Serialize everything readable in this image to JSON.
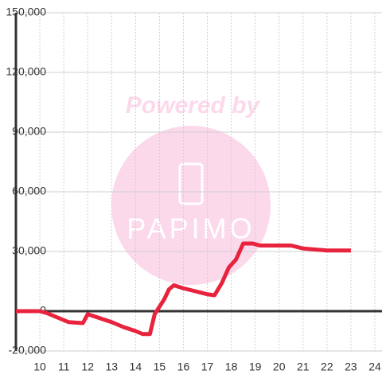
{
  "chart_data": {
    "type": "line",
    "x": [
      9,
      10,
      10.3,
      10.5,
      10.8,
      11.2,
      11.8,
      12,
      12.5,
      13,
      13.5,
      14,
      14.3,
      14.6,
      14.8,
      15.2,
      15.4,
      15.6,
      16,
      16.5,
      17,
      17.3,
      17.6,
      17.9,
      18.2,
      18.5,
      18.9,
      19.2,
      20,
      20.5,
      21,
      21.5,
      22,
      23
    ],
    "series": [
      {
        "color": "#e8233d",
        "values": [
          0,
          0,
          -1000,
          -2000,
          -3500,
          -5500,
          -6000,
          -1500,
          -3500,
          -5500,
          -8000,
          -10000,
          -11500,
          -11500,
          -1500,
          6000,
          11000,
          13000,
          11500,
          10000,
          8500,
          8000,
          14000,
          22000,
          26000,
          34000,
          34000,
          33000,
          33000,
          33000,
          31500,
          31000,
          30500,
          30500
        ]
      }
    ],
    "xlim": [
      9,
      24.3
    ],
    "xticks": [
      10,
      11,
      12,
      13,
      14,
      15,
      16,
      17,
      18,
      19,
      20,
      21,
      22,
      23,
      24
    ],
    "ylim": [
      -20000,
      150000
    ],
    "yticks": [
      {
        "value": -20000,
        "label": "-20,000"
      },
      0,
      {
        "value": 30000,
        "label": "30,000"
      },
      {
        "value": 60000,
        "label": "60,000"
      },
      {
        "value": 90000,
        "label": "90,000"
      },
      {
        "value": 120000,
        "label": "120,000"
      },
      {
        "value": 150000,
        "label": "150,000"
      }
    ],
    "grid": true
  },
  "watermark": {
    "text": "Powered by",
    "logo": "PAPIMO"
  }
}
